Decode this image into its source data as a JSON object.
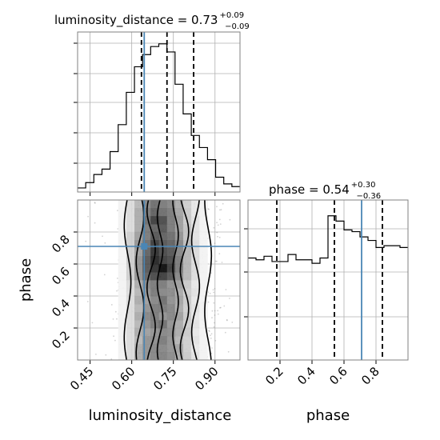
{
  "chart_data": {
    "type": "corner",
    "colors": {
      "truth": "#4a86b5",
      "line": "#000000",
      "grid": "#b0b0b0",
      "samples": "#808080"
    },
    "parameters": [
      {
        "name": "luminosity_distance",
        "range": [
          0.405,
          0.99
        ],
        "ticks": [
          0.45,
          0.6,
          0.75,
          0.9
        ],
        "tick_labels": [
          "0.45",
          "0.60",
          "0.75",
          "0.90"
        ],
        "median": "0.73",
        "plus": "+0.09",
        "minus": "−0.09",
        "quantiles": [
          0.635,
          0.727,
          0.823
        ],
        "truth": 0.645
      },
      {
        "name": "phase",
        "range": [
          0.0,
          1.0
        ],
        "ticks": [
          0.2,
          0.4,
          0.6,
          0.8
        ],
        "tick_labels": [
          "0.2",
          "0.4",
          "0.6",
          "0.8"
        ],
        "median": "0.54",
        "plus": "+0.30",
        "minus": "−0.36",
        "quantiles": [
          0.18,
          0.54,
          0.84
        ],
        "truth": 0.71
      }
    ],
    "titles": [
      {
        "base": "luminosity_distance = 0.73",
        "sup": "+0.09",
        "sub": "−0.09"
      },
      {
        "base": "phase = 0.54",
        "sup": "+0.30",
        "sub": "−0.36"
      }
    ],
    "hist_dist": {
      "edges": [
        0.405,
        0.4342,
        0.4635,
        0.4928,
        0.522,
        0.5512,
        0.5805,
        0.6098,
        0.639,
        0.6682,
        0.6975,
        0.7268,
        0.756,
        0.7852,
        0.8145,
        0.8438,
        0.873,
        0.9022,
        0.9315,
        0.9608,
        0.99
      ],
      "counts": [
        3,
        7,
        13,
        17,
        30,
        50,
        74,
        93,
        102,
        108,
        110,
        104,
        80,
        58,
        42,
        33,
        24,
        11,
        6,
        4
      ]
    },
    "hist_phase": {
      "edges": [
        0.0,
        0.05,
        0.1,
        0.15,
        0.2,
        0.25,
        0.3,
        0.35,
        0.4,
        0.45,
        0.5,
        0.55,
        0.6,
        0.65,
        0.7,
        0.75,
        0.8,
        0.85,
        0.9,
        0.95,
        1.0
      ],
      "counts": [
        58,
        57,
        59,
        56,
        56,
        60,
        57,
        57,
        55,
        58,
        82,
        79,
        74,
        73,
        70,
        68,
        64,
        65,
        65,
        64
      ]
    },
    "heatmap_2d": {
      "x_edges": [
        0.405,
        0.4342,
        0.4635,
        0.4928,
        0.522,
        0.5512,
        0.5805,
        0.6098,
        0.639,
        0.6682,
        0.6975,
        0.7268,
        0.756,
        0.7852,
        0.8145,
        0.8438,
        0.873,
        0.9022,
        0.9315,
        0.9608,
        0.99
      ],
      "y_edges": [
        0.0,
        0.05,
        0.1,
        0.15,
        0.2,
        0.25,
        0.3,
        0.35,
        0.4,
        0.45,
        0.5,
        0.55,
        0.6,
        0.65,
        0.7,
        0.75,
        0.8,
        0.85,
        0.9,
        0.95,
        1.0
      ],
      "note_axes": "rows are phase bins (bottom to top), columns are luminosity_distance bins (left to right); density 0-1",
      "density": [
        [
          0,
          0,
          0,
          0,
          0,
          0.05,
          0.15,
          0.35,
          0.45,
          0.5,
          0.52,
          0.48,
          0.35,
          0.22,
          0.12,
          0.05,
          0,
          0,
          0,
          0
        ],
        [
          0,
          0,
          0,
          0,
          0,
          0.05,
          0.15,
          0.35,
          0.45,
          0.5,
          0.5,
          0.45,
          0.38,
          0.2,
          0.1,
          0.05,
          0,
          0,
          0,
          0
        ],
        [
          0,
          0,
          0,
          0,
          0,
          0.05,
          0.15,
          0.3,
          0.45,
          0.48,
          0.55,
          0.45,
          0.3,
          0.2,
          0.12,
          0.05,
          0,
          0,
          0,
          0
        ],
        [
          0,
          0,
          0,
          0,
          0,
          0.05,
          0.15,
          0.35,
          0.4,
          0.45,
          0.5,
          0.48,
          0.35,
          0.22,
          0.1,
          0.05,
          0,
          0,
          0,
          0
        ],
        [
          0,
          0,
          0,
          0,
          0,
          0.05,
          0.15,
          0.3,
          0.45,
          0.55,
          0.6,
          0.45,
          0.35,
          0.2,
          0.12,
          0.05,
          0,
          0,
          0,
          0
        ],
        [
          0,
          0,
          0,
          0,
          0,
          0.05,
          0.15,
          0.35,
          0.5,
          0.55,
          0.45,
          0.5,
          0.4,
          0.22,
          0.1,
          0.05,
          0,
          0,
          0,
          0
        ],
        [
          0,
          0,
          0,
          0,
          0,
          0.05,
          0.15,
          0.3,
          0.45,
          0.55,
          0.55,
          0.5,
          0.35,
          0.2,
          0.12,
          0.05,
          0,
          0,
          0,
          0
        ],
        [
          0,
          0,
          0,
          0,
          0,
          0.05,
          0.15,
          0.35,
          0.4,
          0.5,
          0.6,
          0.45,
          0.38,
          0.22,
          0.1,
          0.05,
          0,
          0,
          0,
          0
        ],
        [
          0,
          0,
          0,
          0,
          0,
          0.05,
          0.15,
          0.3,
          0.45,
          0.55,
          0.5,
          0.48,
          0.35,
          0.2,
          0.12,
          0.05,
          0,
          0,
          0,
          0
        ],
        [
          0,
          0,
          0,
          0,
          0,
          0.05,
          0.15,
          0.35,
          0.5,
          0.55,
          0.55,
          0.45,
          0.4,
          0.22,
          0.1,
          0.05,
          0,
          0,
          0,
          0
        ],
        [
          0,
          0,
          0,
          0,
          0,
          0.05,
          0.2,
          0.45,
          0.65,
          0.75,
          0.8,
          0.7,
          0.5,
          0.3,
          0.15,
          0.05,
          0,
          0,
          0,
          0
        ],
        [
          0,
          0,
          0,
          0,
          0,
          0.05,
          0.2,
          0.45,
          0.7,
          0.85,
          1.0,
          0.8,
          0.55,
          0.3,
          0.15,
          0.05,
          0,
          0,
          0,
          0
        ],
        [
          0,
          0,
          0,
          0,
          0,
          0.05,
          0.2,
          0.45,
          0.7,
          0.9,
          0.8,
          0.75,
          0.55,
          0.3,
          0.15,
          0.05,
          0,
          0,
          0,
          0
        ],
        [
          0,
          0,
          0,
          0,
          0,
          0.05,
          0.2,
          0.4,
          0.65,
          0.85,
          0.75,
          0.7,
          0.5,
          0.3,
          0.15,
          0.05,
          0,
          0,
          0,
          0
        ],
        [
          0,
          0,
          0,
          0,
          0,
          0.05,
          0.2,
          0.45,
          0.6,
          0.8,
          0.7,
          0.65,
          0.5,
          0.28,
          0.15,
          0.05,
          0,
          0,
          0,
          0
        ],
        [
          0,
          0,
          0,
          0,
          0,
          0.05,
          0.2,
          0.4,
          0.55,
          0.7,
          0.65,
          0.6,
          0.45,
          0.25,
          0.12,
          0.05,
          0,
          0,
          0,
          0
        ],
        [
          0,
          0,
          0,
          0,
          0,
          0.05,
          0.15,
          0.35,
          0.55,
          0.65,
          0.7,
          0.55,
          0.4,
          0.25,
          0.12,
          0.05,
          0,
          0,
          0,
          0
        ],
        [
          0,
          0,
          0,
          0,
          0,
          0.05,
          0.15,
          0.35,
          0.6,
          0.8,
          0.75,
          0.55,
          0.4,
          0.22,
          0.12,
          0.05,
          0,
          0,
          0,
          0
        ],
        [
          0,
          0,
          0,
          0,
          0,
          0.05,
          0.15,
          0.35,
          0.55,
          0.65,
          0.6,
          0.55,
          0.38,
          0.22,
          0.1,
          0.05,
          0,
          0,
          0,
          0
        ],
        [
          0,
          0,
          0,
          0,
          0,
          0.05,
          0.15,
          0.3,
          0.5,
          0.6,
          0.55,
          0.5,
          0.35,
          0.2,
          0.1,
          0.05,
          0,
          0,
          0,
          0
        ]
      ]
    }
  }
}
